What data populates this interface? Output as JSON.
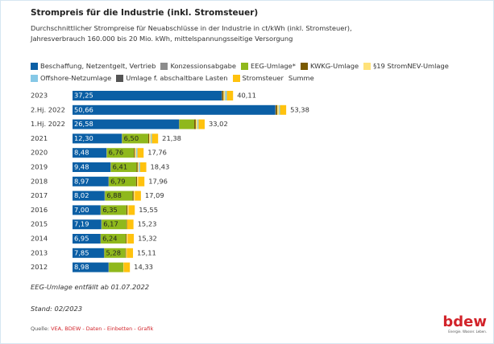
{
  "chart_data": {
    "type": "stacked_barh",
    "title": "Strompreis für die Industrie (inkl. Stromsteuer)",
    "subtitle": "Durchschnittlicher Strompreise für Neuabschlüsse in der Industrie in ct/kWh (inkl. Stromsteuer), Jahresverbrauch 160.000 bis 20 Mio. kWh, mittelspannungsseitige Versorgung",
    "categories": [
      "2023",
      "2.Hj. 2022",
      "1.Hj. 2022",
      "2021",
      "2020",
      "2019",
      "2018",
      "2017",
      "2016",
      "2015",
      "2014",
      "2013",
      "2012"
    ],
    "series": [
      {
        "name": "Beschaffung, Netzentgelt, Vertrieb",
        "color": "#0b5fa5",
        "values": [
          37.25,
          50.66,
          26.58,
          12.3,
          8.48,
          9.48,
          8.97,
          8.02,
          7.0,
          7.19,
          6.95,
          7.85,
          8.98
        ],
        "value_labels": [
          "37,25",
          "50,66",
          "26,58",
          "12,30",
          "8,48",
          "9,48",
          "8,97",
          "8,02",
          "7,00",
          "7,19",
          "6,95",
          "7,85",
          "8,98"
        ]
      },
      {
        "name": "Konzessionsabgabe",
        "color": "#8c8c8c",
        "values": [
          0.11,
          0.11,
          0.11,
          0.11,
          0.11,
          0.11,
          0.11,
          0.11,
          0.11,
          0.11,
          0.11,
          0.11,
          0.11
        ]
      },
      {
        "name": "EEG-Umlage*",
        "color": "#8fb81c",
        "values": [
          0,
          0,
          3.72,
          6.5,
          6.76,
          6.41,
          6.79,
          6.88,
          6.35,
          6.17,
          6.24,
          5.28,
          3.59
        ],
        "value_labels": [
          null,
          null,
          null,
          "6,50",
          "6,76",
          "6,41",
          "6,79",
          "6,88",
          "6,35",
          "6,17",
          "6,24",
          "5,28",
          null
        ]
      },
      {
        "name": "KWKG-Umlage",
        "color": "#7a5a00",
        "values": [
          0.36,
          0.38,
          0.38,
          0.25,
          0.23,
          0.28,
          0.24,
          0.26,
          0.28,
          0.12,
          0.18,
          0.13,
          0.02
        ]
      },
      {
        "name": "§19 StromNEV-Umlage",
        "color": "#ffe27a",
        "values": [
          0.42,
          0.44,
          0.44,
          0.43,
          0.36,
          0.31,
          0.31,
          0.28,
          0.27,
          0.1,
          0.29,
          0.2,
          0.09
        ]
      },
      {
        "name": "Offshore-Netzumlage",
        "color": "#86c8e6",
        "values": [
          0.43,
          0.25,
          0.25,
          0.25,
          0.28,
          0.3,
          0,
          0,
          0,
          0,
          0,
          0,
          0
        ]
      },
      {
        "name": "Umlage f. abschaltbare Lasten",
        "color": "#555555",
        "values": [
          0,
          0,
          0,
          0,
          0,
          0,
          0,
          0,
          0,
          0,
          0.01,
          0,
          0
        ]
      },
      {
        "name": "Stromsteuer",
        "color": "#ffc20e",
        "values": [
          1.54,
          1.54,
          1.54,
          1.54,
          1.54,
          1.54,
          1.54,
          1.54,
          1.54,
          1.54,
          1.54,
          1.54,
          1.54
        ]
      }
    ],
    "totals_name": "Summe",
    "totals": [
      40.11,
      53.38,
      33.02,
      21.38,
      17.76,
      18.43,
      17.96,
      17.09,
      15.55,
      15.23,
      15.32,
      15.11,
      14.33
    ],
    "totals_labels": [
      "40,11",
      "53,38",
      "33,02",
      "21,38",
      "17,76",
      "18,43",
      "17,96",
      "17,09",
      "15,55",
      "15,23",
      "15,32",
      "15,11",
      "14,33"
    ],
    "xlim": [
      0,
      60
    ],
    "notes": [
      "EEG-Umlage entfällt ab 01.07.2022",
      "Stand: 02/2023"
    ],
    "source": {
      "prefix": "Quelle:",
      "text": "VEA, BDEW - Daten - Einbetten - Grafik"
    },
    "logo": {
      "word": "bdew",
      "tagline": "Energie. Wasser. Leben."
    }
  }
}
